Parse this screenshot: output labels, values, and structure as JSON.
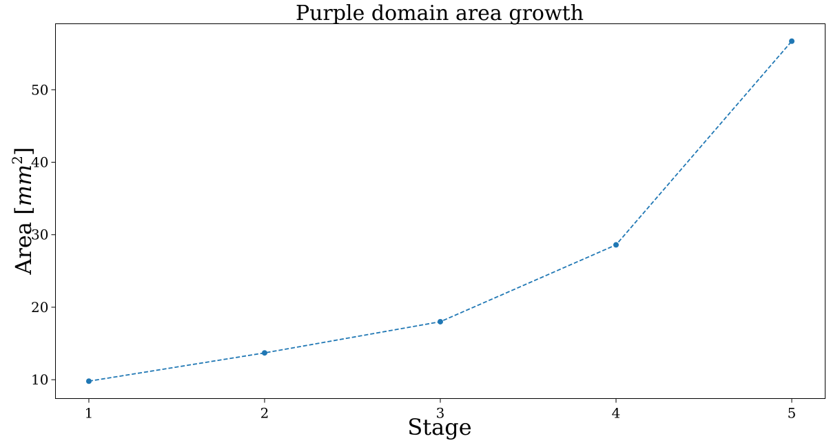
{
  "chart_data": {
    "type": "line",
    "title": "Purple domain area growth",
    "xlabel": "Stage",
    "ylabel_text": "Area [",
    "ylabel_unit": "mm",
    "ylabel_exponent": "2",
    "ylabel_close": "]",
    "x": [
      1,
      2,
      3,
      4,
      5
    ],
    "series": [
      {
        "values": [
          9.8,
          13.7,
          18.0,
          28.6,
          56.7
        ],
        "color": "#1f77b4",
        "linestyle": "dashed",
        "marker": "circle"
      }
    ],
    "xticks": [
      "1",
      "2",
      "3",
      "4",
      "5"
    ],
    "yticks": [
      10,
      20,
      30,
      40,
      50
    ],
    "xlim": [
      0.81,
      5.19
    ],
    "ylim": [
      7.4,
      59.1
    ],
    "grid": false
  }
}
